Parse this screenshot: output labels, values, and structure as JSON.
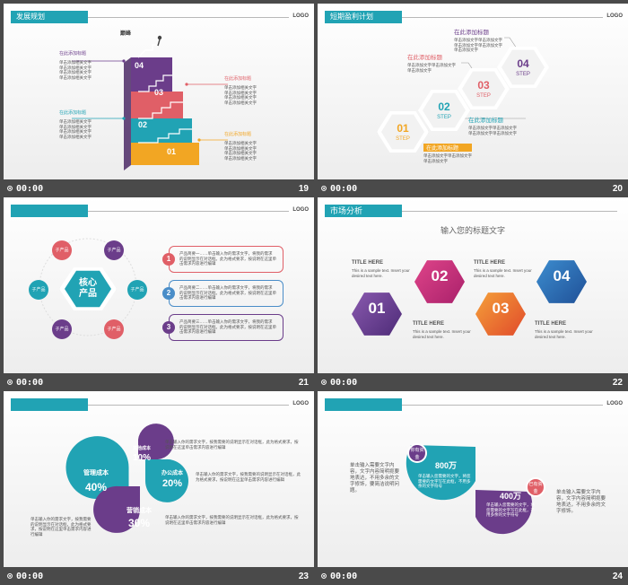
{
  "slides": [
    {
      "number": "19",
      "time": "00:00",
      "header": "发展规划",
      "logo": "LOGO",
      "top_label": "巅峰",
      "steps": [
        "01",
        "02",
        "03",
        "04"
      ],
      "callouts": [
        {
          "title": "在此添加标题",
          "lines": [
            "单击添加相关文字",
            "单击添加相关文字",
            "单击添加相关文字",
            "单击添加相关文字"
          ]
        },
        {
          "title": "在此添加标题",
          "lines": [
            "单击添加相关文字",
            "单击添加相关文字",
            "单击添加相关文字",
            "单击添加相关文字"
          ]
        },
        {
          "title": "在此添加标题",
          "lines": [
            "单击添加相关文字",
            "单击添加相关文字",
            "单击添加相关文字",
            "单击添加相关文字"
          ]
        },
        {
          "title": "在此添加标题",
          "lines": [
            "单击添加相关文字",
            "单击添加相关文字",
            "单击添加相关文字",
            "单击添加相关文字"
          ]
        }
      ],
      "colors": {
        "purple": "#6b3d8a",
        "red": "#e05f67",
        "teal": "#21a3b4",
        "orange": "#f2a623"
      }
    },
    {
      "number": "20",
      "time": "00:00",
      "header": "短期盈利计划",
      "logo": "LOGO",
      "steps": [
        {
          "num": "01",
          "word": "STEP",
          "color": "#f2a623"
        },
        {
          "num": "02",
          "word": "STEP",
          "color": "#21a3b4"
        },
        {
          "num": "03",
          "word": "STEP",
          "color": "#e05f67"
        },
        {
          "num": "04",
          "word": "STEP",
          "color": "#6b3d8a"
        }
      ],
      "callouts": [
        {
          "title": "在此添加标题",
          "lines": [
            "单击添加文字单击添加文字",
            "单击添加文字"
          ]
        },
        {
          "title": "在此添加标题",
          "lines": [
            "单击添加文字单击添加文字",
            "单击添加文字单击添加文字"
          ]
        },
        {
          "title": "在此添加标题",
          "lines": [
            "单击添加文字单击添加文字",
            "单击添加文字"
          ]
        },
        {
          "title": "在此添加标题",
          "lines": [
            "单击添加文字单击添加文字",
            "单击添加文字单击添加文字",
            "单击添加文字"
          ]
        }
      ]
    },
    {
      "number": "21",
      "time": "00:00",
      "logo": "LOGO",
      "center": "核心\n产品",
      "nodes": [
        "子产品",
        "子产品",
        "子产品",
        "子产品",
        "子产品",
        "子产品"
      ],
      "items": [
        {
          "num": "1",
          "line1": "产品简要一……单击输入你的需求文字，将我的需求",
          "line2": "的说明显示在对话框。此为格式要求，按说明在这里单击需求内容进行编辑",
          "color": "#e05f67"
        },
        {
          "num": "2",
          "line1": "产品简要二……单击输入你的需求文字，将我的需求",
          "line2": "的说明显示在对话框。此为格式要求，按说明在这里单击需求内容进行编辑",
          "color": "#4a8dc8"
        },
        {
          "num": "3",
          "line1": "产品简要三……单击输入你的需求文字，将我的需求",
          "line2": "的说明显示在对话框。此为格式要求，按说明在这里单击需求内容进行编辑",
          "color": "#6b3d8a"
        }
      ]
    },
    {
      "number": "22",
      "time": "00:00",
      "header": "市场分析",
      "subtitle": "输入您的标题文字",
      "items": [
        {
          "num": "01",
          "title": "TITLE HERE",
          "desc": "This is a sample text. Insert your desired text here."
        },
        {
          "num": "02",
          "title": "TITLE HERE",
          "desc": "This is a sample text. Insert your desired text here."
        },
        {
          "num": "03",
          "title": "TITLE HERE",
          "desc": "This is a sample text. Insert your desired text here."
        },
        {
          "num": "04",
          "title": "TITLE HERE",
          "desc": "This is a sample text. Insert your desired text here."
        }
      ]
    },
    {
      "number": "23",
      "time": "00:00",
      "logo": "LOGO",
      "petals": [
        {
          "label": "管理成本",
          "value": "40%",
          "color": "#21a3b4"
        },
        {
          "label": "其他成本",
          "value": "10%",
          "color": "#6b3d8a"
        },
        {
          "label": "办公成本",
          "value": "20%",
          "color": "#21a3b4"
        },
        {
          "label": "营销成本",
          "value": "30%",
          "color": "#6b3d8a"
        }
      ],
      "texts": [
        "单击输入你的需求文字，按我需要的说明显示在对话框，此为格式要求，按说明在这里单击需求内容进行编辑",
        "单击输入你的需求文字，按我需要的说明显示在对话框，此为格式要求，按说明在这里单击需求内容进行编辑",
        "单击输入你的需求文字，按我需要的说明显示在对话框，此为格式要求，按说明在这里单击需求内容进行编辑",
        "单击输入你的需求文字，按我需要的说明显示在对话框，此为格式要求，按说明在这里单击需求内容进行编辑"
      ]
    },
    {
      "number": "24",
      "time": "00:00",
      "logo": "LOGO",
      "items": [
        {
          "badge": "你有资金",
          "value": "800万",
          "desc": "单击输入您需要的文字，将您需要的文字写在此框，不用多余的文字符号",
          "color": "#21a3b4",
          "badge_color": "#6b3d8a"
        },
        {
          "badge": "已有资金",
          "value": "400万",
          "desc": "单击输入您需要的文字，将您需要的文字写在此框，不用多余的文字符号",
          "color": "#6b3d8a",
          "badge_color": "#e05f67"
        }
      ],
      "left_text": "单击输入需要文字内容，文字内容简明扼要地表达，不用多余的文字修饰，要简洁说明问题。",
      "right_text": "单击输入需要文字内容，文字内容简明扼要地表达，不用多余的文字修饰。"
    }
  ]
}
